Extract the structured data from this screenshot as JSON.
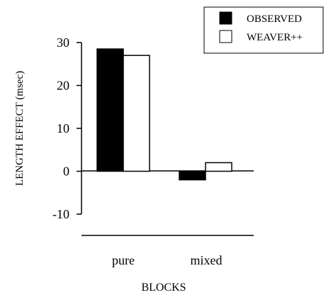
{
  "chart_data": {
    "type": "bar",
    "title": "",
    "xlabel": "BLOCKS",
    "ylabel": "LENGTH  EFFECT  (msec)",
    "categories": [
      "pure",
      "mixed"
    ],
    "series": [
      {
        "name": "OBSERVED",
        "values": [
          28.5,
          -2
        ],
        "color": "#000000"
      },
      {
        "name": "WEAVER++",
        "values": [
          27,
          2
        ],
        "color": "#ffffff"
      }
    ],
    "ylim": [
      -10,
      30
    ],
    "yticks": [
      "-10",
      "0",
      "10",
      "20",
      "30"
    ],
    "grid": false,
    "legend": "top-right"
  }
}
